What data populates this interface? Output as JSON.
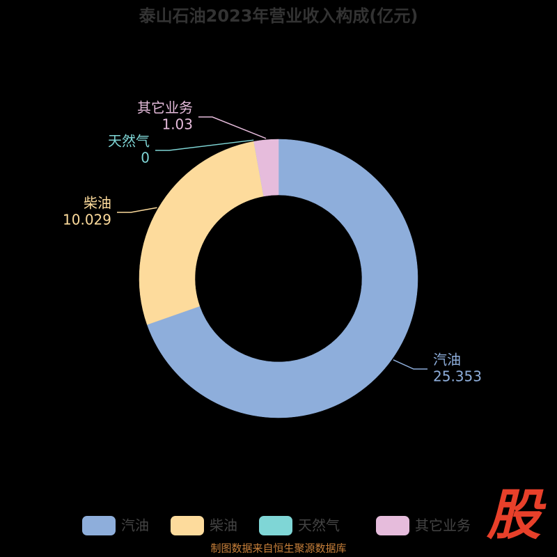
{
  "chart_data": {
    "type": "donut",
    "title": "泰山石油2023年营业收入构成(亿元)",
    "categories": [
      "汽油",
      "柴油",
      "天然气",
      "其它业务"
    ],
    "values": [
      25.353,
      10.029,
      0,
      1.03
    ],
    "colors": [
      "#8eaedb",
      "#fddb9c",
      "#7fd6d6",
      "#e6bcdc"
    ],
    "source": "制图数据来自恒生聚源数据库",
    "logo": "股"
  }
}
